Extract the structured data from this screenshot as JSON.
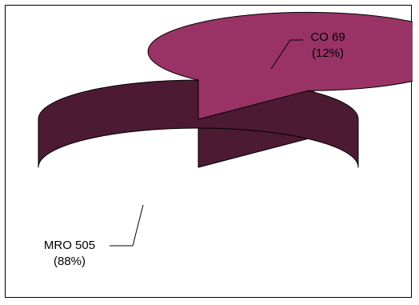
{
  "chart_data": {
    "type": "pie",
    "style": "3d-exploded",
    "title": "",
    "slices": [
      {
        "name": "CO",
        "value": 69,
        "percent": 12,
        "label_name": "CO 69",
        "label_pct": "(12%)",
        "color": "#ccffff",
        "side_color": "#6a9a9a"
      },
      {
        "name": "MRO",
        "value": 505,
        "percent": 88,
        "label_name": "MRO 505",
        "label_pct": "(88%)",
        "color": "#993366",
        "side_color": "#4d1a33"
      }
    ]
  }
}
